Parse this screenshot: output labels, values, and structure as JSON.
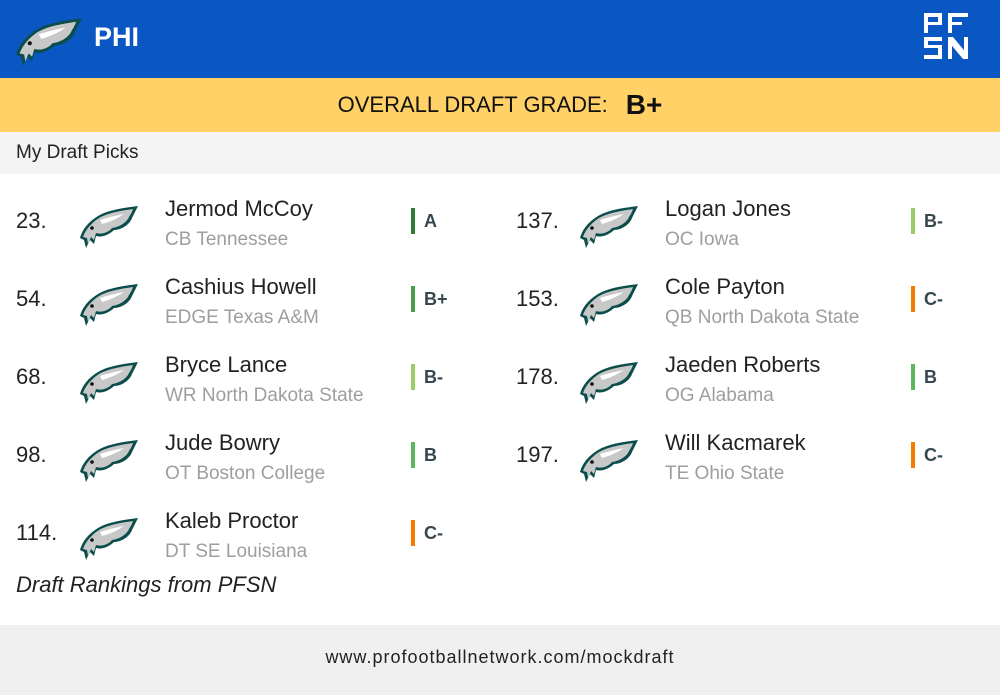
{
  "header": {
    "team": "PHI",
    "brand_logo": "PFSN"
  },
  "overall": {
    "label": "OVERALL DRAFT GRADE:",
    "grade": "B+"
  },
  "section_title": "My Draft Picks",
  "grade_colors": {
    "A": "#2e7d32",
    "B+": "#43a047",
    "B": "#5cb85c",
    "B-": "#9ccc65",
    "C-": "#f57c00"
  },
  "picks": [
    {
      "num": "23.",
      "name": "Jermod McCoy",
      "pos": "CB Tennessee",
      "grade": "A"
    },
    {
      "num": "54.",
      "name": "Cashius Howell",
      "pos": "EDGE Texas A&M",
      "grade": "B+"
    },
    {
      "num": "68.",
      "name": "Bryce Lance",
      "pos": "WR North Dakota State",
      "grade": "B-"
    },
    {
      "num": "98.",
      "name": "Jude Bowry",
      "pos": "OT Boston College",
      "grade": "B"
    },
    {
      "num": "114.",
      "name": "Kaleb Proctor",
      "pos": "DT SE Louisiana",
      "grade": "C-"
    },
    {
      "num": "137.",
      "name": "Logan Jones",
      "pos": "OC Iowa",
      "grade": "B-"
    },
    {
      "num": "153.",
      "name": "Cole Payton",
      "pos": "QB North Dakota State",
      "grade": "C-"
    },
    {
      "num": "178.",
      "name": "Jaeden Roberts",
      "pos": "OG Alabama",
      "grade": "B"
    },
    {
      "num": "197.",
      "name": "Will Kacmarek",
      "pos": "TE Ohio State",
      "grade": "C-"
    }
  ],
  "credit": "Draft Rankings from PFSN",
  "footer_url": "www.profootballnetwork.com/mockdraft"
}
